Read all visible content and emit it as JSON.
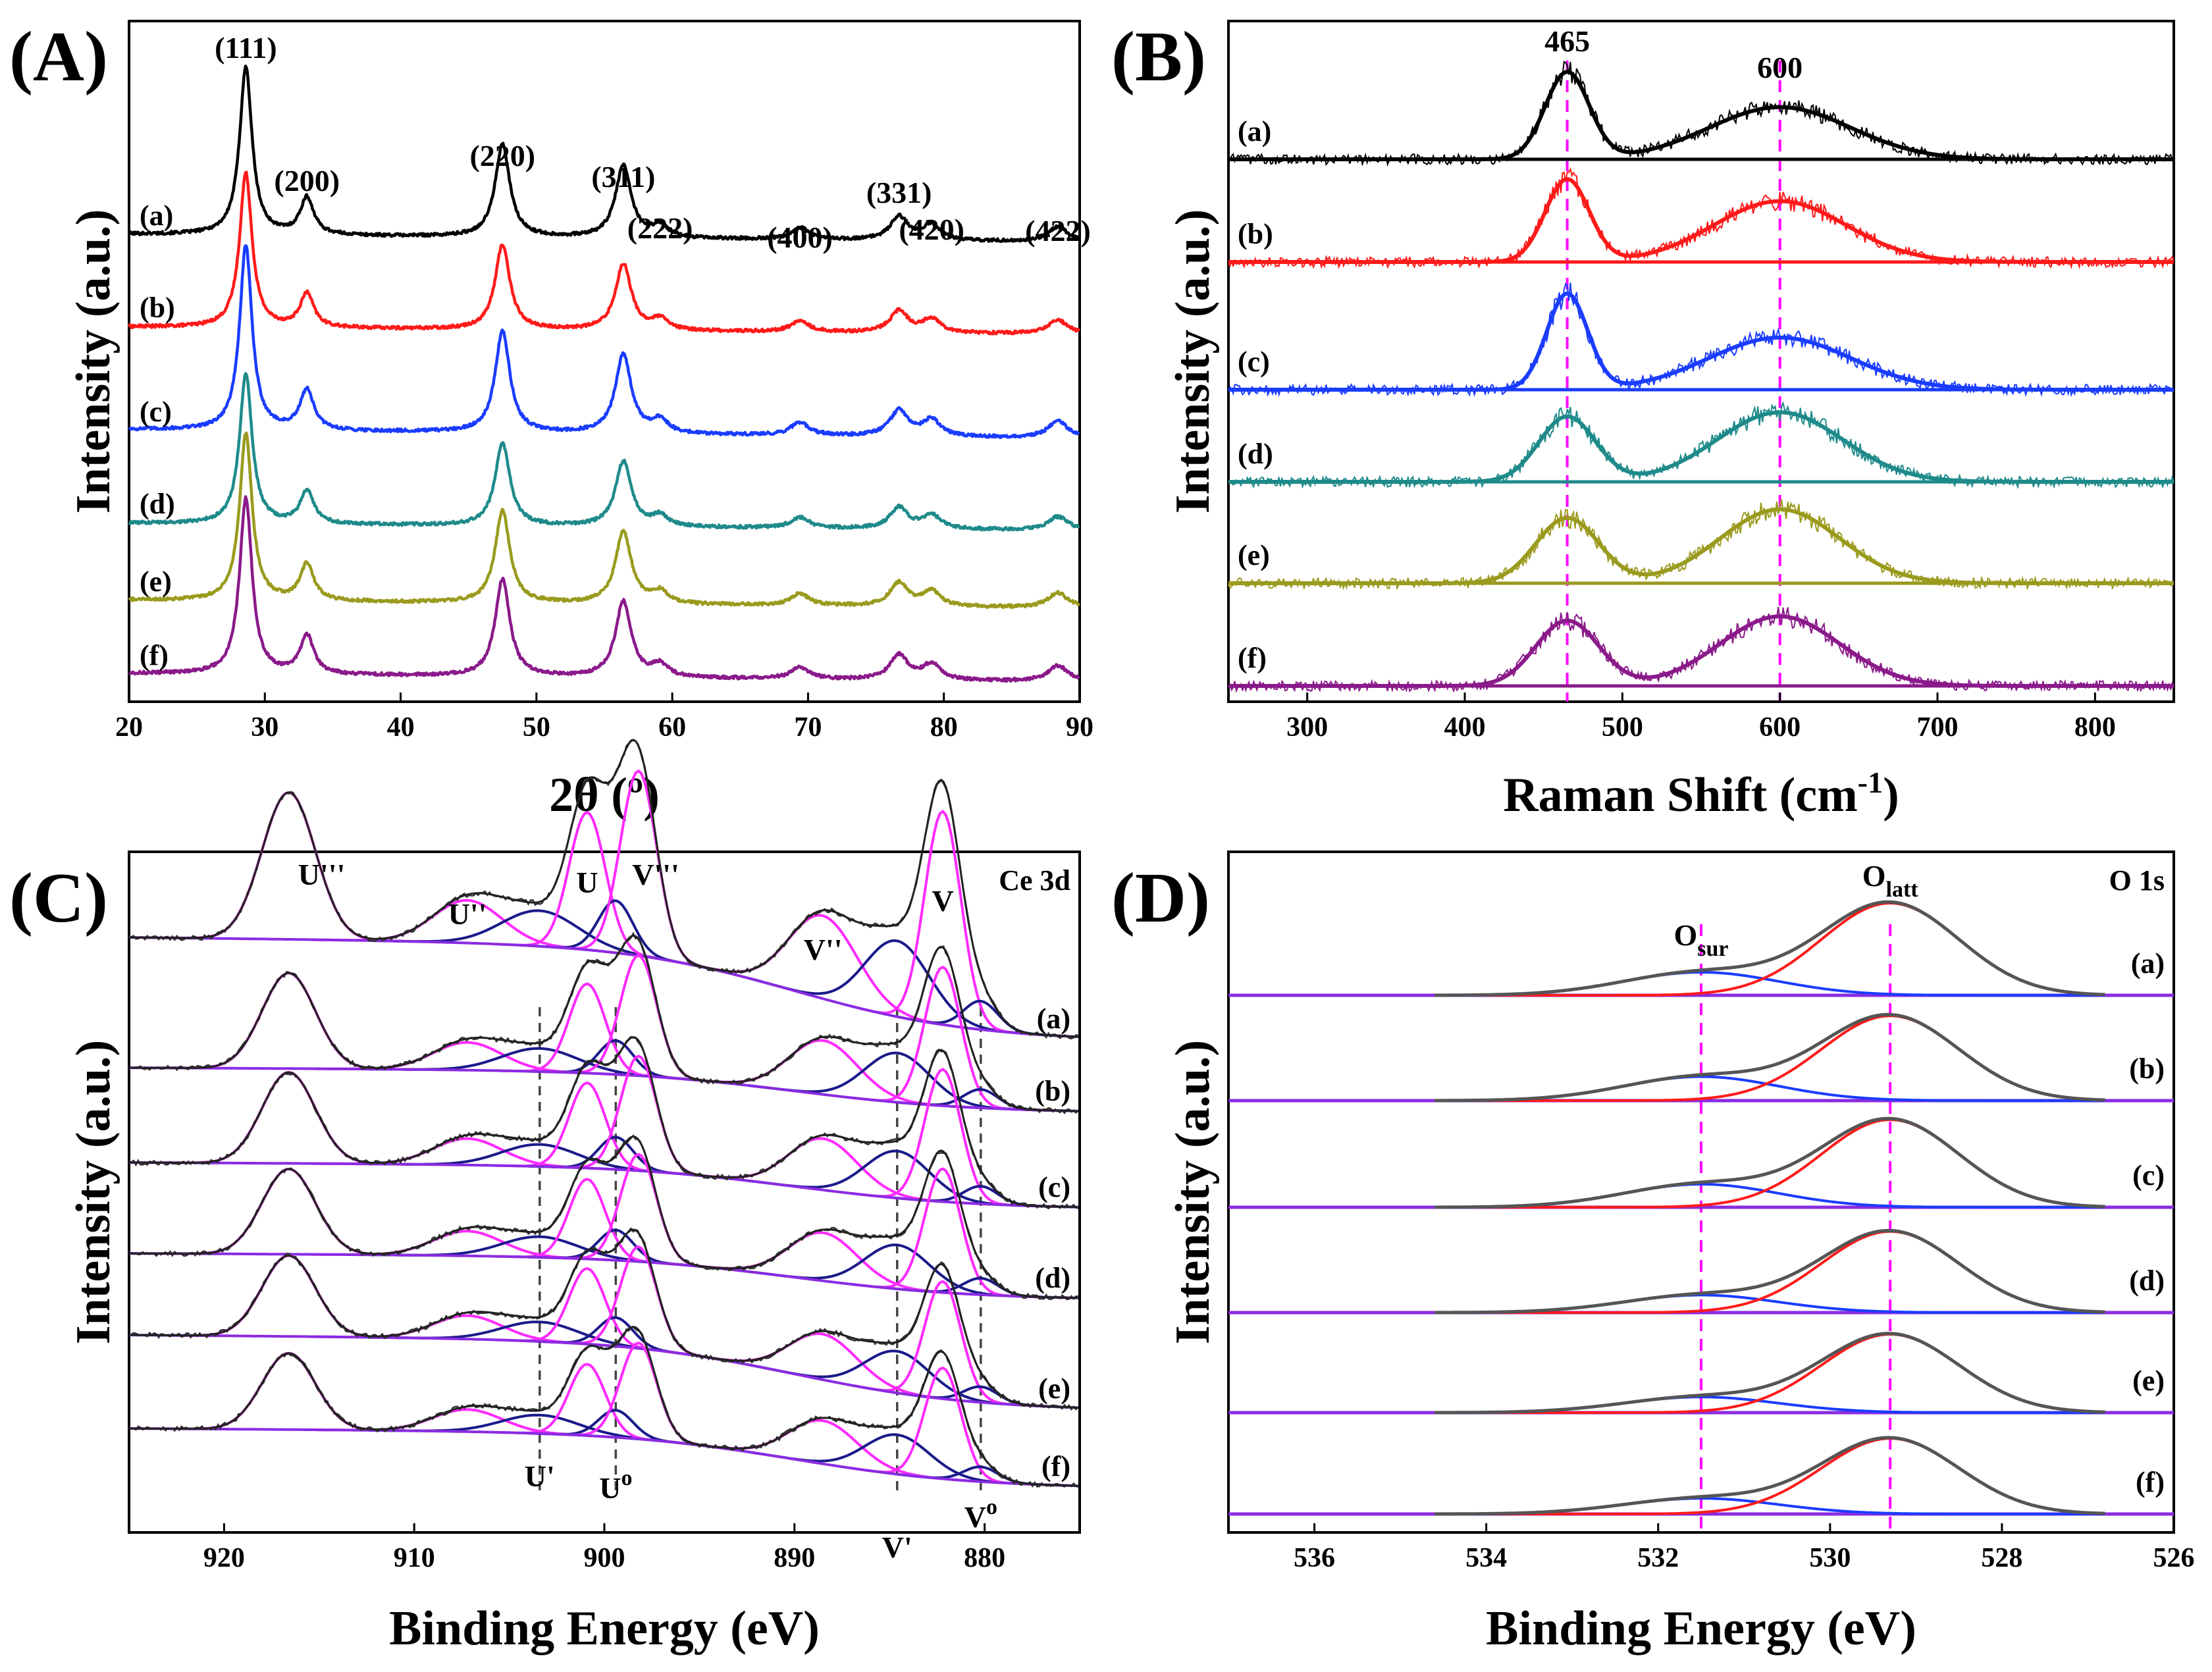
{
  "chart_data": [
    {
      "panel": "(A)",
      "type": "line",
      "xlabel": "2θ (º)",
      "ylabel": "Intensity (a.u.)",
      "xlim": [
        20,
        90
      ],
      "xticks": [
        20,
        30,
        40,
        50,
        60,
        70,
        80,
        90
      ],
      "series": [
        {
          "name": "(a)",
          "color": "#000000"
        },
        {
          "name": "(b)",
          "color": "#ff1a1a"
        },
        {
          "name": "(c)",
          "color": "#1a3cff"
        },
        {
          "name": "(d)",
          "color": "#1f8a8a"
        },
        {
          "name": "(e)",
          "color": "#9a9a1e"
        },
        {
          "name": "(f)",
          "color": "#8a1a8a"
        }
      ],
      "peaks": [
        {
          "label": "(111)",
          "x": 28.6,
          "h": 1.0,
          "w": 0.55
        },
        {
          "label": "(200)",
          "x": 33.1,
          "h": 0.22,
          "w": 0.6
        },
        {
          "label": "(220)",
          "x": 47.5,
          "h": 0.55,
          "w": 0.65
        },
        {
          "label": "(311)",
          "x": 56.4,
          "h": 0.43,
          "w": 0.7
        },
        {
          "label": "(222)",
          "x": 59.1,
          "h": 0.07,
          "w": 0.7
        },
        {
          "label": "(400)",
          "x": 69.4,
          "h": 0.07,
          "w": 0.8
        },
        {
          "label": "(331)",
          "x": 76.7,
          "h": 0.14,
          "w": 0.8
        },
        {
          "label": "(420)",
          "x": 79.1,
          "h": 0.09,
          "w": 0.8
        },
        {
          "label": "(422)",
          "x": 88.4,
          "h": 0.09,
          "w": 0.9
        }
      ],
      "series_scale": [
        1.0,
        0.92,
        1.1,
        0.9,
        1.0,
        1.05
      ]
    },
    {
      "panel": "(B)",
      "type": "line",
      "xlabel": "Raman Shift (cm",
      "xlabel_sup": "-1",
      "xlabel_end": ")",
      "ylabel": "Intensity (a.u.)",
      "xlim": [
        250,
        850
      ],
      "xticks": [
        300,
        400,
        500,
        600,
        700,
        800
      ],
      "reference_lines": [
        465,
        600
      ],
      "peak_labels": [
        {
          "text": "465",
          "x": 465
        },
        {
          "text": "600",
          "x": 600
        }
      ],
      "series": [
        {
          "name": "(a)",
          "color": "#000000",
          "peaks": [
            {
              "x": 465,
              "h": 1.0,
              "w": 14
            },
            {
              "x": 600,
              "h": 0.6,
              "w": 45
            }
          ]
        },
        {
          "name": "(b)",
          "color": "#ff1a1a",
          "peaks": [
            {
              "x": 465,
              "h": 0.95,
              "w": 14
            },
            {
              "x": 600,
              "h": 0.7,
              "w": 42
            }
          ]
        },
        {
          "name": "(c)",
          "color": "#1a3cff",
          "peaks": [
            {
              "x": 465,
              "h": 1.1,
              "w": 13
            },
            {
              "x": 600,
              "h": 0.6,
              "w": 45
            }
          ]
        },
        {
          "name": "(d)",
          "color": "#1f8a8a",
          "peaks": [
            {
              "x": 465,
              "h": 0.75,
              "w": 18
            },
            {
              "x": 600,
              "h": 0.8,
              "w": 40
            }
          ]
        },
        {
          "name": "(e)",
          "color": "#9a9a1e",
          "peaks": [
            {
              "x": 465,
              "h": 0.75,
              "w": 20
            },
            {
              "x": 600,
              "h": 0.85,
              "w": 38
            }
          ]
        },
        {
          "name": "(f)",
          "color": "#8a1a8a",
          "peaks": [
            {
              "x": 465,
              "h": 0.75,
              "w": 20
            },
            {
              "x": 600,
              "h": 0.8,
              "w": 38
            }
          ]
        }
      ]
    },
    {
      "panel": "(C)",
      "type": "line",
      "corner_label": "Ce 3d",
      "xlabel": "Binding Energy (eV)",
      "ylabel": "Intensity (a.u.)",
      "xlim": [
        925,
        875
      ],
      "xticks": [
        920,
        910,
        900,
        890,
        880
      ],
      "series_names": [
        "(a)",
        "(b)",
        "(c)",
        "(d)",
        "(e)",
        "(f)"
      ],
      "series_scale": [
        1.0,
        0.65,
        0.62,
        0.58,
        0.55,
        0.52
      ],
      "components": [
        {
          "name": "U'''",
          "x": 916.6,
          "h": 0.62,
          "w": 1.4,
          "color": "#ff2aff"
        },
        {
          "name": "U''",
          "x": 907.2,
          "h": 0.18,
          "w": 1.8,
          "color": "#ff2aff"
        },
        {
          "name": "U'",
          "x": 903.4,
          "h": 0.15,
          "w": 2.0,
          "color": "#1a1a8a"
        },
        {
          "name": "U",
          "x": 900.9,
          "h": 0.58,
          "w": 0.95,
          "color": "#ff2aff"
        },
        {
          "name": "U0",
          "x": 899.4,
          "h": 0.22,
          "w": 0.9,
          "color": "#1a1a8a"
        },
        {
          "name": "V'''",
          "x": 898.2,
          "h": 0.78,
          "w": 0.95,
          "color": "#ff2aff"
        },
        {
          "name": "V''",
          "x": 888.5,
          "h": 0.35,
          "w": 1.8,
          "color": "#ff2aff"
        },
        {
          "name": "V'",
          "x": 884.6,
          "h": 0.32,
          "w": 1.7,
          "color": "#1a1a8a"
        },
        {
          "name": "V",
          "x": 882.2,
          "h": 0.9,
          "w": 0.95,
          "color": "#ff2aff"
        },
        {
          "name": "V0",
          "x": 880.2,
          "h": 0.12,
          "w": 0.9,
          "color": "#1a1a8a"
        }
      ],
      "peak_labels": [
        {
          "text": "U'''",
          "x": 916.6
        },
        {
          "text": "U''",
          "x": 907.2
        },
        {
          "text": "U",
          "x": 900.9
        },
        {
          "text": "V'''",
          "x": 898.2
        },
        {
          "text": "V''",
          "x": 888.5
        },
        {
          "text": "V",
          "x": 882.2
        }
      ],
      "bottom_labels": [
        {
          "base": "U'",
          "sup": "",
          "x": 903.4
        },
        {
          "base": "U",
          "sup": "o",
          "x": 899.4
        },
        {
          "base": "V'",
          "sup": "",
          "x": 884.6
        },
        {
          "base": "V",
          "sup": "o",
          "x": 880.2
        }
      ],
      "reference_lines": [
        903.4,
        899.4,
        884.6,
        880.2
      ]
    },
    {
      "panel": "(D)",
      "type": "line",
      "corner_label": "O 1s",
      "xlabel": "Binding Energy (eV)",
      "ylabel": "Intensity (a.u.)",
      "xlim": [
        537,
        526
      ],
      "xticks": [
        536,
        534,
        532,
        530,
        528,
        526
      ],
      "reference_lines": [
        531.5,
        529.3
      ],
      "peak_labels": [
        {
          "base": "O",
          "sub": "sur",
          "x": 531.5
        },
        {
          "base": "O",
          "sub": "latt",
          "x": 529.3
        }
      ],
      "series": [
        {
          "name": "(a)",
          "sur": 0.25,
          "latt": 1.0
        },
        {
          "name": "(b)",
          "sur": 0.26,
          "latt": 0.92
        },
        {
          "name": "(c)",
          "sur": 0.25,
          "latt": 0.95
        },
        {
          "name": "(d)",
          "sur": 0.19,
          "latt": 0.88
        },
        {
          "name": "(e)",
          "sur": 0.17,
          "latt": 0.85
        },
        {
          "name": "(f)",
          "sur": 0.17,
          "latt": 0.82
        }
      ],
      "colors": {
        "envelope": "#555555",
        "sur": "#1a3cff",
        "latt": "#ff1a1a",
        "background": "#8a2be2",
        "reference": "#ff00ff"
      }
    }
  ]
}
